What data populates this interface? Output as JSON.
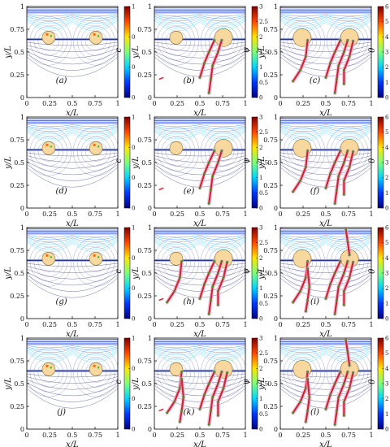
{
  "chart_data": {
    "type": "contour",
    "xlabel": "x/L",
    "ylabel": "y/L",
    "xticks": [
      "0",
      "0.25",
      "0.5",
      "0.75",
      "1"
    ],
    "yticks": [
      "0.25",
      "0.5",
      "0.75",
      "1"
    ],
    "xlim": [
      0,
      1
    ],
    "ylim": [
      0,
      1
    ],
    "colorbar_labels": [
      "c",
      "ψ",
      "θ"
    ],
    "colormap": [
      "#00007f",
      "#0036ff",
      "#00d4ff",
      "#7dff7a",
      "#ffe500",
      "#ff4800",
      "#7f0000"
    ],
    "columns": [
      {
        "colorbar_ticks": [
          "0",
          "0",
          "0",
          "1"
        ],
        "colorbar_range": [
          0,
          1
        ]
      },
      {
        "colorbar_ticks": [
          "0",
          "0.5",
          "1",
          "1.5",
          "2",
          "2.5",
          "3"
        ],
        "colorbar_range": [
          0,
          3
        ]
      },
      {
        "colorbar_ticks": [
          "0",
          "1",
          "2",
          "3",
          "4",
          "5",
          "6"
        ],
        "colorbar_range": [
          0,
          6
        ]
      }
    ],
    "panels": [
      {
        "tag": "(a)",
        "row": 0,
        "col": 0,
        "stage": 0
      },
      {
        "tag": "(b)",
        "row": 0,
        "col": 1,
        "stage": 1
      },
      {
        "tag": "(c)",
        "row": 0,
        "col": 2,
        "stage": 2
      },
      {
        "tag": "(d)",
        "row": 1,
        "col": 0,
        "stage": 0
      },
      {
        "tag": "(e)",
        "row": 1,
        "col": 1,
        "stage": 1
      },
      {
        "tag": "(f)",
        "row": 1,
        "col": 2,
        "stage": 2
      },
      {
        "tag": "(g)",
        "row": 2,
        "col": 0,
        "stage": 0
      },
      {
        "tag": "(h)",
        "row": 2,
        "col": 1,
        "stage": 1
      },
      {
        "tag": "(i)",
        "row": 2,
        "col": 2,
        "stage": 2
      },
      {
        "tag": "(j)",
        "row": 3,
        "col": 0,
        "stage": 0
      },
      {
        "tag": "(k)",
        "row": 3,
        "col": 1,
        "stage": 1
      },
      {
        "tag": "(l)",
        "row": 3,
        "col": 2,
        "stage": 2
      }
    ],
    "interface_y": 0.64,
    "grains_x": [
      0.24,
      0.76
    ],
    "cracks": [
      [
        [
          0.74,
          0.63
        ],
        [
          0.7,
          0.5
        ],
        [
          0.64,
          0.35
        ],
        [
          0.62,
          0.2
        ],
        [
          0.6,
          0.05
        ]
      ],
      [
        [
          0.66,
          0.63
        ],
        [
          0.6,
          0.5
        ],
        [
          0.55,
          0.38
        ],
        [
          0.5,
          0.22
        ]
      ],
      [
        [
          0.3,
          0.63
        ],
        [
          0.28,
          0.45
        ],
        [
          0.22,
          0.3
        ],
        [
          0.14,
          0.18
        ]
      ],
      [
        [
          0.8,
          0.62
        ],
        [
          0.76,
          0.45
        ],
        [
          0.7,
          0.3
        ],
        [
          0.7,
          0.15
        ]
      ],
      [
        [
          0.3,
          0.55
        ],
        [
          0.32,
          0.35
        ],
        [
          0.3,
          0.2
        ],
        [
          0.28,
          0.08
        ]
      ],
      [
        [
          0.72,
          0.98
        ],
        [
          0.74,
          0.85
        ],
        [
          0.76,
          0.7
        ]
      ]
    ]
  }
}
